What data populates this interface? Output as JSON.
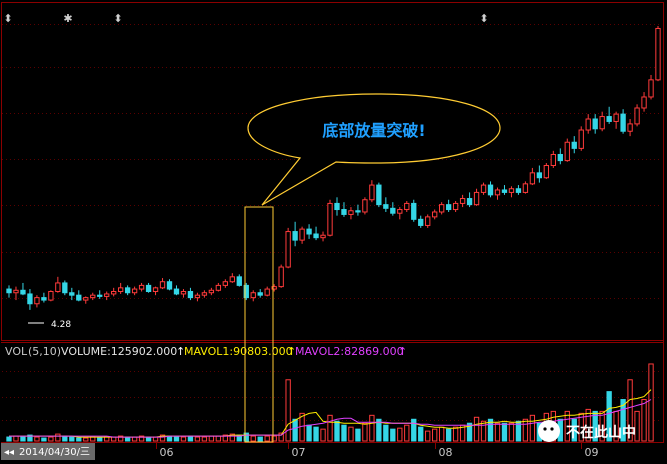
{
  "chart_data": {
    "type": "candlestick",
    "volume_header": {
      "indicator": "VOL",
      "params": "(5,10)",
      "volume_label": "VOLUME:125902.000",
      "ma1_label": "MAVOL1:90803.000",
      "ma2_label": "MAVOL2:82869.000"
    },
    "x_tick_labels": [
      "06",
      "07",
      "08",
      "09"
    ],
    "current_date": "2014/04/30/三",
    "low_price_label": "4.28",
    "annotation_text": "底部放量突破!",
    "event_markers": [
      "⬍",
      "✱",
      "⬍",
      "⬍"
    ],
    "watermark": "不在此山中",
    "colors": {
      "up": "#ff3b3b",
      "down": "#35d6e6",
      "ma1": "#ffee00",
      "ma2": "#e040ff",
      "callout": "#ffcc33",
      "frame": "#8b0000"
    },
    "price_bars_ohlc": [
      [
        4.45,
        4.48,
        4.38,
        4.42
      ],
      [
        4.42,
        4.47,
        4.36,
        4.44
      ],
      [
        4.44,
        4.5,
        4.4,
        4.41
      ],
      [
        4.41,
        4.45,
        4.28,
        4.33
      ],
      [
        4.33,
        4.4,
        4.3,
        4.38
      ],
      [
        4.38,
        4.42,
        4.34,
        4.36
      ],
      [
        4.36,
        4.44,
        4.35,
        4.43
      ],
      [
        4.43,
        4.55,
        4.42,
        4.5
      ],
      [
        4.5,
        4.52,
        4.4,
        4.42
      ],
      [
        4.42,
        4.46,
        4.36,
        4.4
      ],
      [
        4.4,
        4.44,
        4.35,
        4.36
      ],
      [
        4.36,
        4.39,
        4.33,
        4.38
      ],
      [
        4.38,
        4.42,
        4.36,
        4.4
      ],
      [
        4.4,
        4.44,
        4.37,
        4.39
      ],
      [
        4.39,
        4.43,
        4.36,
        4.41
      ],
      [
        4.41,
        4.46,
        4.39,
        4.43
      ],
      [
        4.43,
        4.5,
        4.41,
        4.46
      ],
      [
        4.46,
        4.48,
        4.4,
        4.42
      ],
      [
        4.42,
        4.47,
        4.4,
        4.45
      ],
      [
        4.45,
        4.5,
        4.43,
        4.48
      ],
      [
        4.48,
        4.5,
        4.42,
        4.43
      ],
      [
        4.43,
        4.47,
        4.4,
        4.46
      ],
      [
        4.46,
        4.54,
        4.45,
        4.51
      ],
      [
        4.51,
        4.53,
        4.44,
        4.45
      ],
      [
        4.45,
        4.48,
        4.4,
        4.41
      ],
      [
        4.41,
        4.45,
        4.38,
        4.43
      ],
      [
        4.43,
        4.46,
        4.36,
        4.38
      ],
      [
        4.38,
        4.42,
        4.35,
        4.4
      ],
      [
        4.4,
        4.44,
        4.38,
        4.42
      ],
      [
        4.42,
        4.46,
        4.4,
        4.44
      ],
      [
        4.44,
        4.5,
        4.43,
        4.48
      ],
      [
        4.48,
        4.53,
        4.46,
        4.51
      ],
      [
        4.51,
        4.58,
        4.5,
        4.55
      ],
      [
        4.55,
        4.57,
        4.47,
        4.48
      ],
      [
        4.48,
        4.5,
        4.36,
        4.38
      ],
      [
        4.38,
        4.44,
        4.35,
        4.42
      ],
      [
        4.42,
        4.45,
        4.38,
        4.4
      ],
      [
        4.4,
        4.47,
        4.39,
        4.45
      ],
      [
        4.45,
        4.49,
        4.43,
        4.47
      ],
      [
        4.47,
        4.65,
        4.46,
        4.63
      ],
      [
        4.63,
        4.95,
        4.62,
        4.92
      ],
      [
        4.92,
        5.0,
        4.8,
        4.85
      ],
      [
        4.85,
        4.96,
        4.82,
        4.94
      ],
      [
        4.94,
        4.98,
        4.86,
        4.9
      ],
      [
        4.9,
        4.96,
        4.85,
        4.87
      ],
      [
        4.87,
        4.92,
        4.84,
        4.89
      ],
      [
        4.89,
        5.18,
        4.88,
        5.15
      ],
      [
        5.15,
        5.2,
        5.05,
        5.1
      ],
      [
        5.1,
        5.16,
        5.04,
        5.06
      ],
      [
        5.06,
        5.12,
        5.02,
        5.09
      ],
      [
        5.09,
        5.14,
        5.05,
        5.08
      ],
      [
        5.08,
        5.2,
        5.06,
        5.18
      ],
      [
        5.18,
        5.34,
        5.16,
        5.3
      ],
      [
        5.3,
        5.32,
        5.12,
        5.14
      ],
      [
        5.14,
        5.2,
        5.08,
        5.11
      ],
      [
        5.11,
        5.16,
        5.05,
        5.07
      ],
      [
        5.07,
        5.12,
        5.02,
        5.1
      ],
      [
        5.1,
        5.17,
        5.08,
        5.15
      ],
      [
        5.15,
        5.18,
        5.0,
        5.02
      ],
      [
        5.02,
        5.05,
        4.95,
        4.97
      ],
      [
        4.97,
        5.06,
        4.95,
        5.04
      ],
      [
        5.04,
        5.1,
        5.02,
        5.08
      ],
      [
        5.08,
        5.16,
        5.06,
        5.14
      ],
      [
        5.14,
        5.18,
        5.08,
        5.1
      ],
      [
        5.1,
        5.17,
        5.08,
        5.15
      ],
      [
        5.15,
        5.22,
        5.12,
        5.19
      ],
      [
        5.19,
        5.24,
        5.12,
        5.14
      ],
      [
        5.14,
        5.27,
        5.13,
        5.24
      ],
      [
        5.24,
        5.32,
        5.22,
        5.3
      ],
      [
        5.3,
        5.33,
        5.2,
        5.22
      ],
      [
        5.22,
        5.28,
        5.18,
        5.26
      ],
      [
        5.26,
        5.3,
        5.22,
        5.24
      ],
      [
        5.24,
        5.29,
        5.2,
        5.27
      ],
      [
        5.27,
        5.3,
        5.22,
        5.24
      ],
      [
        5.24,
        5.33,
        5.23,
        5.31
      ],
      [
        5.31,
        5.44,
        5.3,
        5.4
      ],
      [
        5.4,
        5.46,
        5.32,
        5.36
      ],
      [
        5.36,
        5.48,
        5.35,
        5.46
      ],
      [
        5.46,
        5.58,
        5.44,
        5.55
      ],
      [
        5.55,
        5.6,
        5.47,
        5.5
      ],
      [
        5.5,
        5.68,
        5.49,
        5.65
      ],
      [
        5.65,
        5.7,
        5.56,
        5.6
      ],
      [
        5.6,
        5.78,
        5.58,
        5.75
      ],
      [
        5.75,
        5.88,
        5.72,
        5.84
      ],
      [
        5.84,
        5.88,
        5.72,
        5.76
      ],
      [
        5.76,
        5.9,
        5.74,
        5.86
      ],
      [
        5.86,
        5.94,
        5.8,
        5.82
      ],
      [
        5.82,
        5.9,
        5.76,
        5.88
      ],
      [
        5.88,
        5.92,
        5.72,
        5.74
      ],
      [
        5.74,
        5.84,
        5.7,
        5.8
      ],
      [
        5.8,
        5.96,
        5.78,
        5.93
      ],
      [
        5.93,
        6.06,
        5.9,
        6.02
      ],
      [
        6.02,
        6.2,
        6.0,
        6.16
      ],
      [
        6.16,
        6.6,
        6.15,
        6.58
      ]
    ],
    "volume_bars": [
      4,
      5,
      4,
      6,
      4,
      3,
      4,
      7,
      5,
      4,
      3,
      3,
      4,
      3,
      4,
      4,
      5,
      4,
      4,
      5,
      4,
      4,
      6,
      5,
      4,
      4,
      5,
      4,
      4,
      5,
      5,
      6,
      7,
      6,
      8,
      5,
      4,
      5,
      5,
      8,
      62,
      22,
      28,
      16,
      14,
      12,
      26,
      20,
      16,
      14,
      12,
      18,
      26,
      22,
      16,
      12,
      13,
      16,
      22,
      14,
      10,
      12,
      14,
      12,
      14,
      16,
      18,
      24,
      20,
      22,
      18,
      18,
      18,
      20,
      22,
      26,
      18,
      28,
      30,
      22,
      30,
      22,
      28,
      32,
      30,
      30,
      50,
      30,
      42,
      62,
      30,
      42,
      78
    ],
    "mavol1": [
      5,
      5,
      5,
      5,
      5,
      5,
      5,
      5,
      5,
      5,
      4,
      4,
      4,
      4,
      4,
      4,
      4,
      4,
      4,
      4,
      4,
      4,
      5,
      5,
      5,
      5,
      5,
      5,
      5,
      5,
      5,
      5,
      6,
      6,
      6,
      6,
      6,
      6,
      6,
      6,
      17,
      21,
      25,
      28,
      29,
      20,
      19,
      19,
      18,
      18,
      18,
      17,
      18,
      19,
      18,
      18,
      18,
      18,
      18,
      16,
      15,
      14,
      14,
      13,
      13,
      14,
      15,
      17,
      18,
      19,
      19,
      20,
      19,
      19,
      20,
      20,
      21,
      22,
      24,
      25,
      26,
      26,
      27,
      28,
      28,
      28,
      33,
      34,
      36,
      42,
      43,
      45,
      52
    ],
    "mavol2": [
      5,
      5,
      5,
      5,
      5,
      5,
      5,
      5,
      5,
      5,
      5,
      5,
      5,
      5,
      5,
      4,
      4,
      4,
      4,
      4,
      4,
      4,
      4,
      5,
      5,
      5,
      5,
      5,
      5,
      5,
      5,
      5,
      5,
      5,
      6,
      6,
      6,
      6,
      6,
      6,
      11,
      13,
      15,
      16,
      17,
      18,
      20,
      22,
      23,
      23,
      19,
      19,
      19,
      19,
      19,
      18,
      18,
      18,
      18,
      17,
      17,
      16,
      16,
      16,
      16,
      16,
      16,
      16,
      16,
      17,
      17,
      17,
      17,
      17,
      17,
      18,
      19,
      19,
      20,
      21,
      22,
      23,
      24,
      25,
      26,
      26,
      28,
      30,
      32,
      34,
      36,
      38,
      42
    ],
    "price_range": [
      4.05,
      6.78
    ],
    "volume_range": [
      0,
      80
    ]
  }
}
